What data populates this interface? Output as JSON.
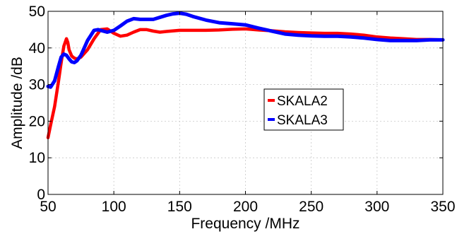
{
  "chart_data": {
    "type": "line",
    "xlabel": "Frequency /MHz",
    "ylabel": "Amplitude /dB",
    "xlim": [
      50,
      350
    ],
    "ylim": [
      0,
      50
    ],
    "xticks": [
      50,
      100,
      150,
      200,
      250,
      300,
      350
    ],
    "yticks": [
      0,
      10,
      20,
      30,
      40,
      50
    ],
    "grid": true,
    "legend_position": "center-right",
    "series": [
      {
        "name": "SKALA2",
        "color": "#ff0000",
        "x": [
          50,
          52,
          55,
          58,
          60,
          62,
          64,
          65,
          66,
          68,
          70,
          72,
          75,
          80,
          85,
          90,
          95,
          100,
          105,
          110,
          115,
          120,
          125,
          130,
          135,
          140,
          150,
          160,
          170,
          180,
          190,
          200,
          210,
          220,
          230,
          240,
          250,
          260,
          270,
          280,
          290,
          300,
          310,
          320,
          330,
          340,
          350
        ],
        "y": [
          15.5,
          19,
          24,
          31,
          36,
          40.5,
          42.5,
          41.5,
          39.5,
          37.8,
          37.2,
          37.0,
          37.5,
          39.5,
          42.5,
          45.0,
          45.2,
          44.0,
          43.2,
          43.5,
          44.3,
          45.0,
          45.0,
          44.6,
          44.3,
          44.5,
          44.8,
          44.8,
          44.8,
          44.9,
          45.1,
          45.2,
          44.9,
          44.7,
          44.4,
          44.2,
          44.1,
          44.0,
          44.0,
          43.8,
          43.5,
          43.0,
          42.7,
          42.5,
          42.3,
          42.3,
          42.2
        ]
      },
      {
        "name": "SKALA3",
        "color": "#0000ff",
        "x": [
          50,
          52,
          55,
          58,
          60,
          62,
          64,
          66,
          68,
          70,
          72,
          75,
          80,
          85,
          88,
          90,
          95,
          100,
          105,
          110,
          115,
          120,
          130,
          140,
          145,
          150,
          155,
          160,
          170,
          180,
          190,
          200,
          210,
          220,
          230,
          240,
          250,
          260,
          270,
          280,
          290,
          300,
          310,
          320,
          330,
          340,
          350
        ],
        "y": [
          29.5,
          29.3,
          31.0,
          35.0,
          37.5,
          38.3,
          38.0,
          37.0,
          36.2,
          36.0,
          36.5,
          38.0,
          42.0,
          44.8,
          45.0,
          44.8,
          44.3,
          44.8,
          46.0,
          47.3,
          48.0,
          47.8,
          47.8,
          48.9,
          49.3,
          49.5,
          49.2,
          48.6,
          47.6,
          46.9,
          46.6,
          46.3,
          45.4,
          44.6,
          43.8,
          43.5,
          43.3,
          43.2,
          43.2,
          43.0,
          42.7,
          42.3,
          42.0,
          42.0,
          42.0,
          42.2,
          42.2
        ]
      }
    ]
  }
}
